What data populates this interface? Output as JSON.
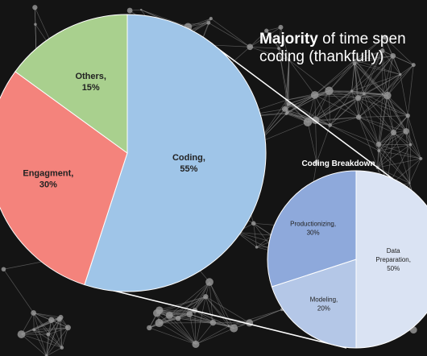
{
  "headline": {
    "bold": "Majority",
    "line1_rest": " of time spen",
    "line2": "coding (thankfully)"
  },
  "chart_data": [
    {
      "type": "pie",
      "title": "",
      "slices": [
        {
          "label": "Coding,",
          "value": 55,
          "value_label": "55%",
          "color": "#9fc5e8"
        },
        {
          "label": "Engagment,",
          "value": 30,
          "value_label": "30%",
          "color": "#f4837c"
        },
        {
          "label": "Others,",
          "value": 15,
          "value_label": "15%",
          "color": "#a9d08e"
        }
      ]
    },
    {
      "type": "pie",
      "title": "Coding Breakdown",
      "slices": [
        {
          "label": "Data",
          "label2": "Preparation,",
          "value": 50,
          "value_label": "50%",
          "color": "#dae3f3"
        },
        {
          "label": "Modeling,",
          "value": 20,
          "value_label": "20%",
          "color": "#b4c7e7"
        },
        {
          "label": "Productionizing,",
          "value": 30,
          "value_label": "30%",
          "color": "#8ea9db"
        }
      ]
    }
  ],
  "colors": {
    "background": "#141414",
    "network": "#8a8a8a",
    "connector": "#ffffff",
    "label_text": "#222222"
  }
}
